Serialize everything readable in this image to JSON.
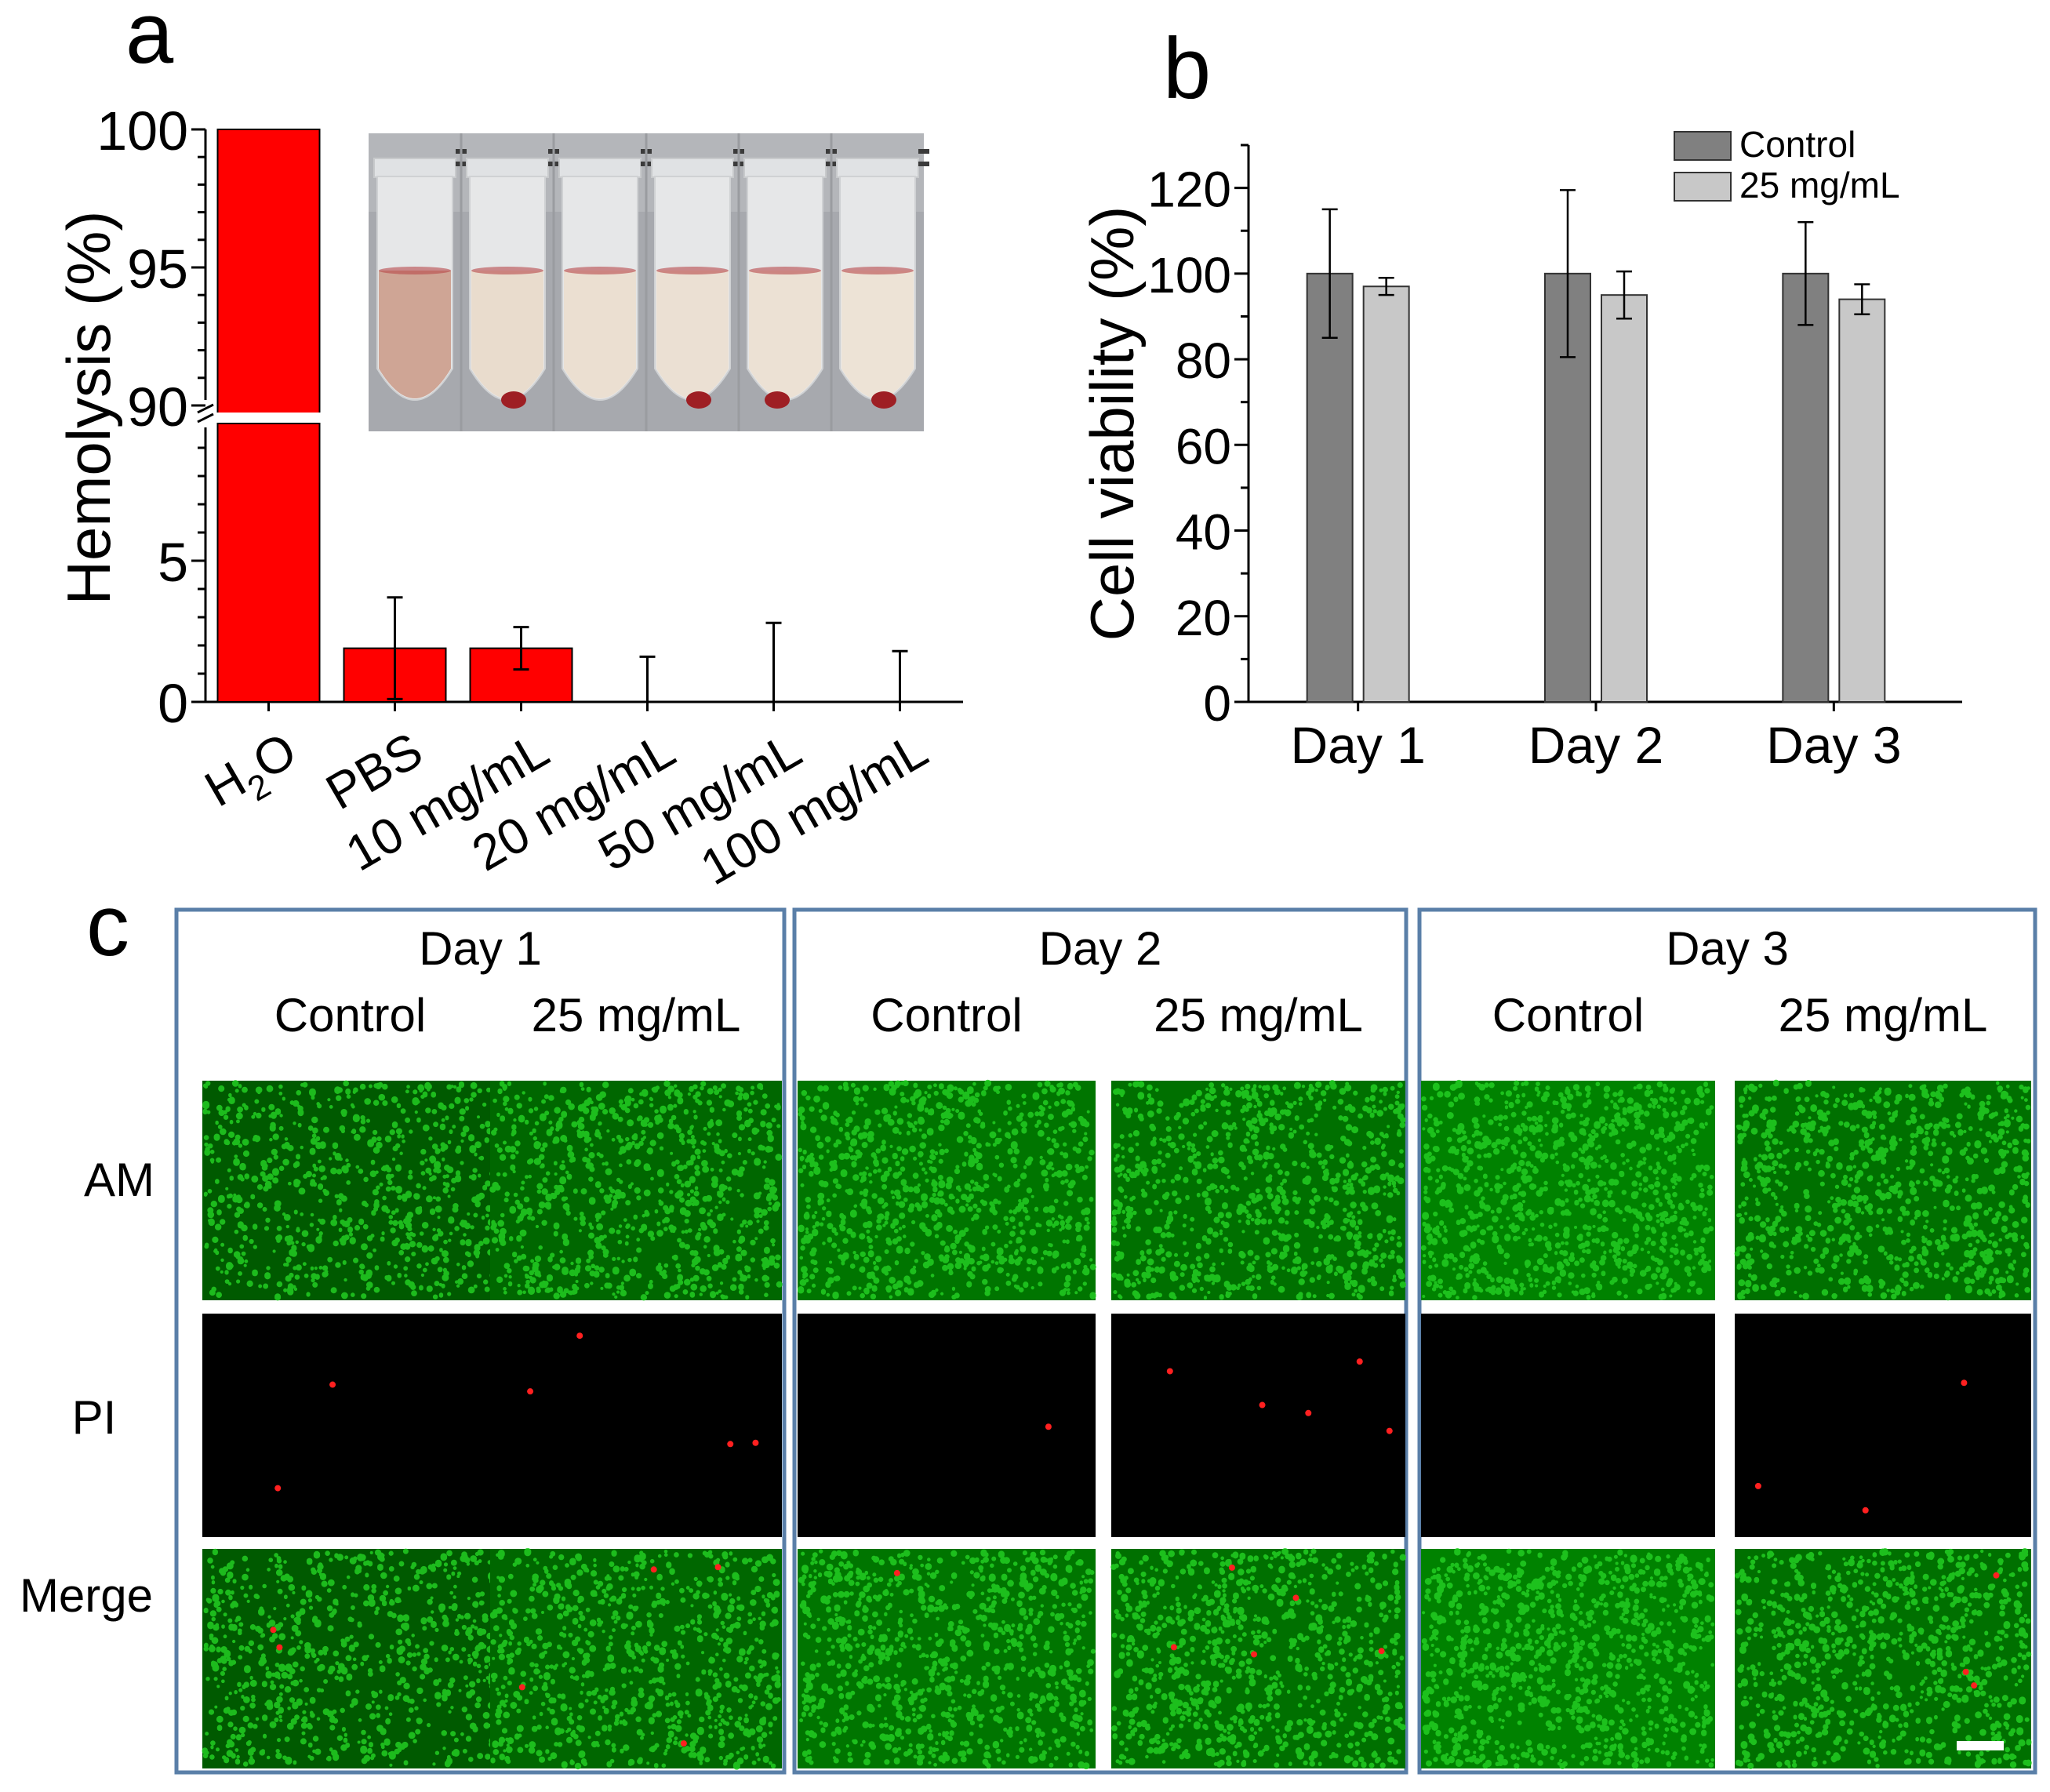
{
  "panel_a": {
    "letter": "a",
    "inset_photo": {
      "description_icon": "tube-photo-icon",
      "tubes": [
        {
          "liquid_color": "#cfa595",
          "pellet": false
        },
        {
          "liquid_color": "#e9dccd",
          "pellet": true
        },
        {
          "liquid_color": "#ebdfd1",
          "pellet": false
        },
        {
          "liquid_color": "#ebe0d3",
          "pellet": true
        },
        {
          "liquid_color": "#ece1d4",
          "pellet": true
        },
        {
          "liquid_color": "#ede3d6",
          "pellet": true
        }
      ]
    },
    "colors": {
      "bar": "#ff0000"
    }
  },
  "panel_b": {
    "letter": "b",
    "colors": {
      "control": "#808080",
      "treated": "#c8c8c8"
    }
  },
  "panel_c": {
    "letter": "c",
    "groups": [
      {
        "day": "Day 1",
        "col_labels": [
          "Control",
          "25 mg/mL"
        ]
      },
      {
        "day": "Day 2",
        "col_labels": [
          "Control",
          "25 mg/mL"
        ]
      },
      {
        "day": "Day 3",
        "col_labels": [
          "Control",
          "25 mg/mL"
        ]
      }
    ],
    "row_labels": [
      "AM",
      "PI",
      "Merge"
    ],
    "green_intensity": [
      [
        0.55,
        0.7
      ],
      [
        0.85,
        0.8
      ],
      [
        1.0,
        0.8
      ]
    ],
    "red_dots": [
      [
        2,
        4
      ],
      [
        1,
        5
      ],
      [
        0,
        3
      ]
    ],
    "colors": {
      "frame": "#5a7fa8",
      "live": "#22cc22",
      "dead": "#ff2020"
    }
  },
  "chart_data": [
    {
      "type": "bar",
      "title": "",
      "xlabel": "",
      "ylabel": "Hemolysis (%)",
      "categories": [
        "H2O",
        "PBS",
        "10 mg/mL",
        "20 mg/mL",
        "50 mg/mL",
        "100 mg/mL"
      ],
      "category_display": [
        {
          "main": "H",
          "sub": "2",
          "tail": "O"
        },
        {
          "main": "PBS",
          "sub": "",
          "tail": ""
        },
        {
          "main": "10 mg/mL",
          "sub": "",
          "tail": ""
        },
        {
          "main": "20 mg/mL",
          "sub": "",
          "tail": ""
        },
        {
          "main": "50 mg/mL",
          "sub": "",
          "tail": ""
        },
        {
          "main": "100 mg/mL",
          "sub": "",
          "tail": ""
        }
      ],
      "values": [
        100,
        1.9,
        1.9,
        0,
        0,
        0
      ],
      "errors": [
        0,
        1.8,
        0.75,
        1.6,
        2.8,
        1.8
      ],
      "y_axis_break": {
        "lower_range": [
          0,
          10
        ],
        "upper_range": [
          90,
          100
        ]
      },
      "yticks_lower": [
        "0",
        "5"
      ],
      "yticks_upper": [
        "90",
        "95",
        "100"
      ],
      "ylim": [
        0,
        100
      ],
      "grid": false
    },
    {
      "type": "bar",
      "title": "",
      "xlabel": "",
      "ylabel": "Cell viability (%)",
      "categories": [
        "Day 1",
        "Day 2",
        "Day 3"
      ],
      "series": [
        {
          "name": "Control",
          "values": [
            100,
            100,
            100
          ],
          "errors": [
            15,
            19.5,
            12
          ]
        },
        {
          "name": "25 mg/mL",
          "values": [
            97,
            95,
            94
          ],
          "errors": [
            2,
            5.5,
            3.5
          ]
        }
      ],
      "yticks": [
        "0",
        "20",
        "40",
        "60",
        "80",
        "100",
        "120"
      ],
      "ylim": [
        0,
        130
      ],
      "legend": "top-right",
      "grid": false
    }
  ]
}
